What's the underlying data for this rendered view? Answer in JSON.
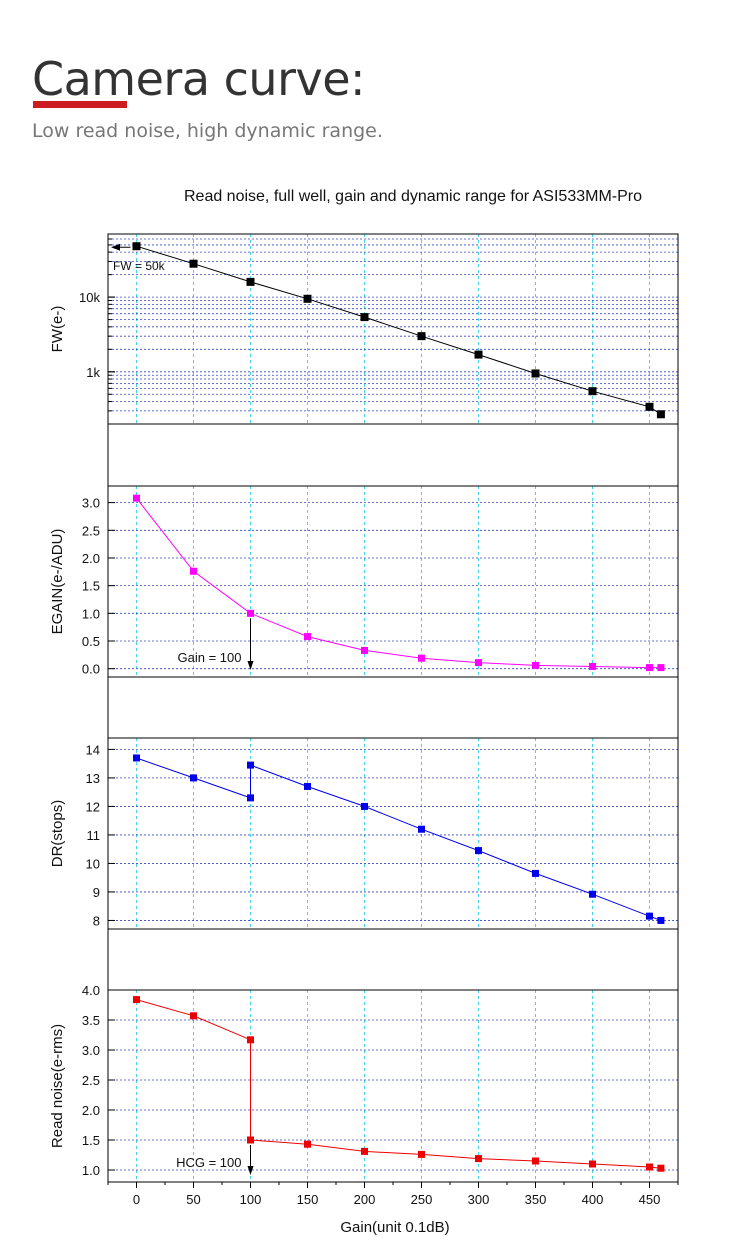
{
  "header": {
    "title": "Camera curve:",
    "subtitle": "Low read noise, high dynamic range."
  },
  "colors": {
    "title_accent": "#cc1d21",
    "fw_series": "#000000",
    "egain_series": "#ff00ff",
    "dr_series": "#0000ee",
    "rn_series": "#ee0000",
    "grid_vertical": "#3fd7e8",
    "grid_horizontal": "#3344cc"
  },
  "chart_data": {
    "type": "line",
    "title": "Read noise, full well, gain and dynamic range for ASI533MM-Pro",
    "xlabel": "Gain(unit 0.1dB)",
    "x_ticks": [
      0,
      50,
      100,
      150,
      200,
      250,
      300,
      350,
      400,
      450
    ],
    "xlim": [
      -25,
      475
    ],
    "panels": [
      {
        "name": "fw",
        "ylabel": "FW(e-)",
        "scale": "log",
        "ylim": [
          200,
          70000
        ],
        "y_ticks": [
          1000,
          10000
        ],
        "y_tick_labels": [
          "1k",
          "10k"
        ],
        "color": "#000000",
        "x": [
          0,
          50,
          100,
          150,
          200,
          250,
          300,
          350,
          400,
          450,
          460
        ],
        "values": [
          48000,
          28000,
          16000,
          9500,
          5400,
          3000,
          1700,
          950,
          550,
          340,
          270
        ],
        "annotation": {
          "text": "FW = 50k",
          "x": 0
        }
      },
      {
        "name": "egain",
        "ylabel": "EGAIN(e-/ADU)",
        "scale": "linear",
        "ylim": [
          -0.15,
          3.3
        ],
        "y_ticks": [
          0.0,
          0.5,
          1.0,
          1.5,
          2.0,
          2.5,
          3.0
        ],
        "y_tick_labels": [
          "0.0",
          "0.5",
          "1.0",
          "1.5",
          "2.0",
          "2.5",
          "3.0"
        ],
        "color": "#ff00ff",
        "x": [
          0,
          50,
          100,
          150,
          200,
          250,
          300,
          350,
          400,
          450,
          460
        ],
        "values": [
          3.08,
          1.76,
          1.0,
          0.58,
          0.33,
          0.19,
          0.11,
          0.06,
          0.04,
          0.02,
          0.02
        ],
        "annotation": {
          "text": "Gain = 100",
          "x": 100
        }
      },
      {
        "name": "dr",
        "ylabel": "DR(stops)",
        "scale": "linear",
        "ylim": [
          7.7,
          14.4
        ],
        "y_ticks": [
          8,
          9,
          10,
          11,
          12,
          13,
          14
        ],
        "y_tick_labels": [
          "8",
          "9",
          "10",
          "11",
          "12",
          "13",
          "14"
        ],
        "color": "#0000ee",
        "x": [
          0,
          50,
          100,
          100,
          150,
          200,
          250,
          300,
          350,
          400,
          450,
          460
        ],
        "values": [
          13.7,
          13.0,
          12.3,
          13.45,
          12.7,
          12.0,
          11.2,
          10.45,
          9.65,
          8.92,
          8.15,
          8.0
        ]
      },
      {
        "name": "rn",
        "ylabel": "Read noise(e-rms)",
        "scale": "linear",
        "ylim": [
          0.8,
          4.0
        ],
        "y_ticks": [
          1.0,
          1.5,
          2.0,
          2.5,
          3.0,
          3.5,
          4.0
        ],
        "y_tick_labels": [
          "1.0",
          "1.5",
          "2.0",
          "2.5",
          "3.0",
          "3.5",
          "4.0"
        ],
        "color": "#ee0000",
        "x": [
          0,
          50,
          100,
          100,
          150,
          200,
          250,
          300,
          350,
          400,
          450,
          460
        ],
        "values": [
          3.84,
          3.57,
          3.17,
          1.5,
          1.43,
          1.31,
          1.26,
          1.19,
          1.15,
          1.1,
          1.05,
          1.03
        ],
        "annotation": {
          "text": "HCG = 100",
          "x": 100
        }
      }
    ]
  }
}
